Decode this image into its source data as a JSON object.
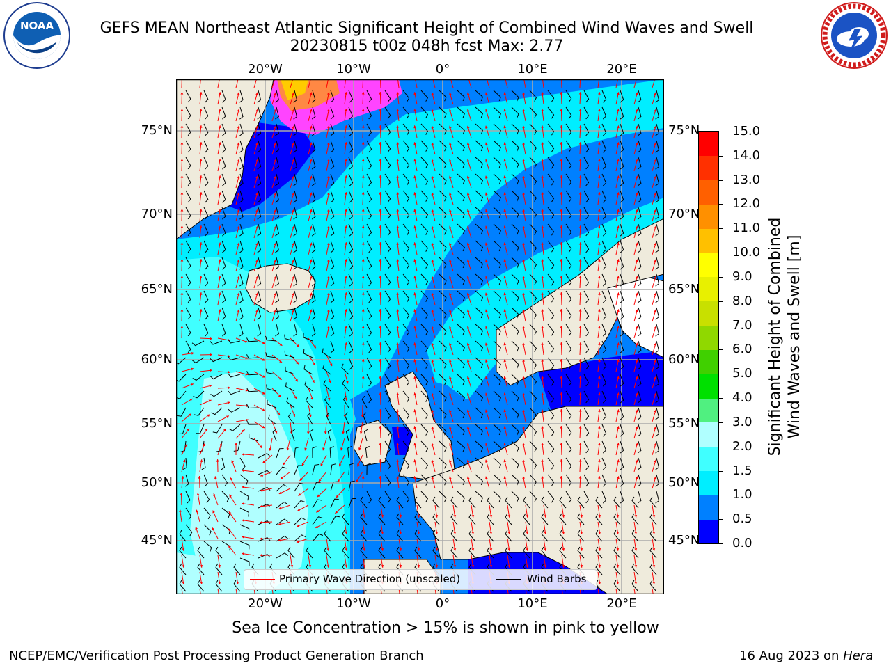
{
  "header": {
    "title_line1": "GEFS MEAN Northeast Atlantic Significant Height of Combined Wind Waves and Swell",
    "title_line2": "20230815 t00z 048h fcst   Max: 2.77"
  },
  "logos": {
    "left": {
      "icon": "noaa-logo",
      "text": "NOAA",
      "ring_text": "NATIONAL OCEANIC AND ATMOSPHERIC ADMINISTRATION · U.S. DEPARTMENT OF COMMERCE"
    },
    "right": {
      "icon": "nws-logo",
      "ring_text": "NATIONAL WEATHER SERVICE"
    }
  },
  "map": {
    "lon_ticks_top": [
      "20°W",
      "10°W",
      "0°",
      "10°E",
      "20°E"
    ],
    "lon_ticks_bottom": [
      "20°W",
      "10°W",
      "0°",
      "10°E",
      "20°E"
    ],
    "lat_ticks_left": [
      "75°N",
      "70°N",
      "65°N",
      "60°N",
      "55°N",
      "50°N",
      "45°N"
    ],
    "lat_ticks_right": [
      "75°N",
      "70°N",
      "65°N",
      "60°N",
      "55°N",
      "50°N",
      "45°N"
    ],
    "land_color": "#efebdc",
    "ice_colors": [
      "#ff44ff",
      "#ff8844",
      "#ffcc00"
    ]
  },
  "legend": {
    "wave_direction_label": "Primary Wave Direction (unscaled)",
    "wave_direction_color": "#ff0000",
    "wind_barbs_label": "Wind Barbs",
    "wind_barbs_color": "#000000"
  },
  "colorbar": {
    "title_line1": "Significant Height of Combined",
    "title_line2": "Wind Waves and Swell [m]",
    "tick_labels": [
      "15.0",
      "14.0",
      "13.0",
      "12.0",
      "11.0",
      "10.0",
      "9.0",
      "8.0",
      "7.0",
      "6.0",
      "5.0",
      "4.0",
      "3.0",
      "2.0",
      "1.5",
      "1.0",
      "0.5",
      "0.0"
    ],
    "segment_colors": [
      "#0000ff",
      "#0080ff",
      "#00eeff",
      "#40ffff",
      "#b0ffff",
      "#50f080",
      "#00e000",
      "#40d000",
      "#90d800",
      "#c8e000",
      "#e8f000",
      "#ffff00",
      "#ffc000",
      "#ff9000",
      "#ff6000",
      "#ff3000",
      "#ff0000"
    ]
  },
  "caption": "Sea Ice Concentration > 15% is shown in pink to yellow",
  "footer": {
    "left": "NCEP/EMC/Verification Post Processing Product Generation Branch",
    "right_date": "16 Aug 2023 on",
    "right_host": "Hera"
  }
}
